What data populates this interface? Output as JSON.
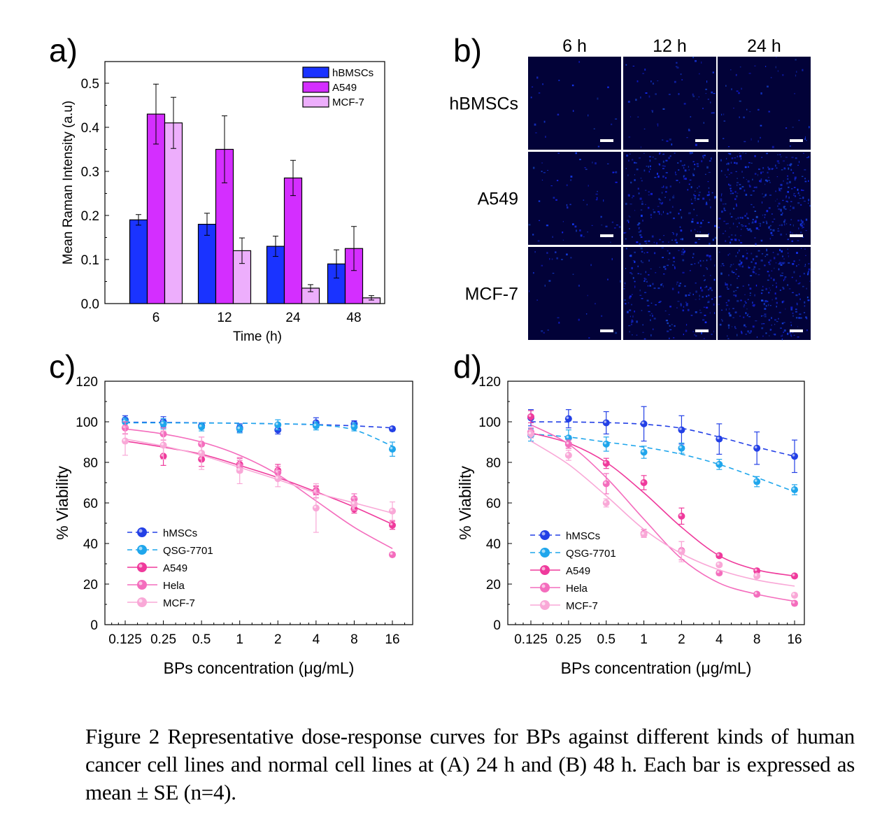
{
  "panel_labels": {
    "a": "a)",
    "b": "b)",
    "c": "c)",
    "d": "d)"
  },
  "caption": "Figure 2 Representative dose-response curves for BPs against different kinds of human cancer cell lines and normal cell lines at (A) 24 h and (B) 48 h. Each bar is expressed as mean ± SE (n=4).",
  "chart_data": [
    {
      "id": "a",
      "type": "bar",
      "title": "",
      "xlabel": "Time (h)",
      "ylabel": "Mean Raman Intensity (a.u)",
      "categories": [
        "6",
        "12",
        "24",
        "48"
      ],
      "ylim": [
        0,
        0.55
      ],
      "yticks": [
        "0.0",
        "0.1",
        "0.2",
        "0.3",
        "0.4",
        "0.5"
      ],
      "legend_position": "top-right",
      "series": [
        {
          "name": "hBMSCs",
          "color": "#1a33ff",
          "values": [
            0.19,
            0.18,
            0.13,
            0.09
          ],
          "errors": [
            0.012,
            0.025,
            0.023,
            0.032
          ]
        },
        {
          "name": "A549",
          "color": "#d42eff",
          "values": [
            0.43,
            0.35,
            0.285,
            0.125
          ],
          "errors": [
            0.068,
            0.076,
            0.04,
            0.05
          ]
        },
        {
          "name": "MCF-7",
          "color": "#edaefc",
          "values": [
            0.41,
            0.12,
            0.035,
            0.013
          ],
          "errors": [
            0.058,
            0.029,
            0.008,
            0.005
          ]
        }
      ]
    },
    {
      "id": "c",
      "type": "scatter",
      "xlabel": "BPs concentration (μg/mL)",
      "ylabel": "% Viability",
      "x": [
        "0.125",
        "0.25",
        "0.5",
        "1",
        "2",
        "4",
        "8",
        "16"
      ],
      "xscale": "log2",
      "ylim": [
        0,
        120
      ],
      "yticks": [
        "0",
        "20",
        "40",
        "60",
        "80",
        "100",
        "120"
      ],
      "legend_position": "bottom-left",
      "series": [
        {
          "name": "hMSCs",
          "color": "#2340e6",
          "style": "dashed",
          "values": [
            101,
            100,
            98,
            97,
            96,
            99.5,
            99,
            96.5
          ],
          "errors": [
            2,
            2.5,
            1.5,
            2,
            2,
            2.5,
            1.5,
            1
          ],
          "fit": [
            99.8,
            99.7,
            99.5,
            99.3,
            99,
            98.6,
            98,
            97
          ]
        },
        {
          "name": "QSG-7701",
          "color": "#1fa6ec",
          "style": "dashed",
          "values": [
            100,
            99,
            97.5,
            96.5,
            98.5,
            98,
            97.5,
            86.5
          ],
          "errors": [
            2,
            2.5,
            2,
            2,
            2.5,
            2,
            2,
            3.5
          ],
          "fit": [
            99.5,
            99.5,
            99.4,
            99.3,
            99,
            98.5,
            96,
            88
          ]
        },
        {
          "name": "A549",
          "color": "#ef3a9c",
          "style": "solid",
          "values": [
            97,
            83,
            81.5,
            79,
            76,
            66,
            57,
            49
          ],
          "errors": [
            3,
            4.5,
            3.5,
            3,
            3,
            2,
            2,
            2
          ],
          "fit": [
            90.5,
            87.5,
            84,
            78.5,
            72.5,
            65.5,
            58,
            49.5
          ]
        },
        {
          "name": "Hela",
          "color": "#f46dbd",
          "style": "solid",
          "values": [
            97,
            94,
            89,
            78,
            75,
            65.5,
            62,
            34.5
          ],
          "errors": [
            3,
            3,
            3.5,
            3,
            3,
            3,
            2.5,
            1
          ],
          "fit": [
            96.5,
            94,
            90,
            83.5,
            74,
            61,
            48,
            37.5
          ]
        },
        {
          "name": "MCF-7",
          "color": "#f9a8d7",
          "style": "solid",
          "values": [
            90.5,
            88.5,
            84.5,
            76,
            72,
            57.5,
            59.5,
            56
          ],
          "errors": [
            7,
            7,
            8,
            6.5,
            4,
            12,
            3,
            4.5
          ],
          "fit": [
            91.5,
            88,
            83.5,
            77.5,
            71.5,
            65,
            60,
            55
          ]
        }
      ]
    },
    {
      "id": "d",
      "type": "scatter",
      "xlabel": "BPs concentration (μg/mL)",
      "ylabel": "% Viability",
      "x": [
        "0.125",
        "0.25",
        "0.5",
        "1",
        "2",
        "4",
        "8",
        "16"
      ],
      "xscale": "log2",
      "ylim": [
        0,
        120
      ],
      "yticks": [
        "0",
        "20",
        "40",
        "60",
        "80",
        "100",
        "120"
      ],
      "legend_position": "bottom-left",
      "series": [
        {
          "name": "hMSCs",
          "color": "#2340e6",
          "style": "dashed",
          "values": [
            102,
            101.5,
            99.5,
            99,
            96,
            91.5,
            87,
            83
          ],
          "errors": [
            4,
            4.5,
            5.5,
            8.5,
            7,
            7.5,
            8,
            8
          ],
          "fit": [
            100,
            99.9,
            99.6,
            98.8,
            96.8,
            92.5,
            87.5,
            83
          ]
        },
        {
          "name": "QSG-7701",
          "color": "#1fa6ec",
          "style": "dashed",
          "values": [
            93.5,
            92,
            89,
            85,
            87,
            79,
            70.5,
            66.5
          ],
          "errors": [
            3,
            4,
            3.5,
            3,
            2.5,
            2.5,
            2.5,
            2.5
          ],
          "fit": [
            94,
            92.5,
            90,
            87.5,
            84,
            79,
            72.5,
            65.5
          ]
        },
        {
          "name": "A549",
          "color": "#ef3a9c",
          "style": "solid",
          "values": [
            102.5,
            89,
            79.5,
            70,
            53.5,
            34,
            26.5,
            24
          ],
          "errors": [
            3,
            2,
            2.5,
            3.5,
            4,
            1,
            1,
            1
          ],
          "fit": [
            94.5,
            89.5,
            80,
            65,
            48,
            34,
            27,
            24
          ]
        },
        {
          "name": "Hela",
          "color": "#f46dbd",
          "style": "solid",
          "values": [
            95,
            89,
            69.5,
            45,
            36.5,
            25.5,
            15,
            10.5
          ],
          "errors": [
            2,
            2,
            5,
            2,
            4.5,
            1,
            1,
            1
          ],
          "fit": [
            98.5,
            89,
            72.5,
            52,
            32.5,
            20.5,
            15,
            11.5
          ]
        },
        {
          "name": "MCF-7",
          "color": "#f9a8d7",
          "style": "solid",
          "values": [
            94,
            83.5,
            60,
            44.5,
            36,
            29.5,
            24,
            14.5
          ],
          "errors": [
            2,
            2.5,
            2,
            1.5,
            5,
            1,
            1,
            1
          ],
          "fit": [
            90.5,
            79,
            63.5,
            47,
            35,
            27,
            22,
            19
          ]
        }
      ]
    }
  ],
  "micrographs": {
    "columns": [
      "6 h",
      "12 h",
      "24 h"
    ],
    "rows": [
      "hBMSCs",
      "A549",
      "MCF-7"
    ],
    "signal_intensity": [
      [
        0.05,
        0.15,
        0.12
      ],
      [
        0.15,
        0.55,
        0.75
      ],
      [
        0.08,
        0.5,
        0.7
      ]
    ]
  }
}
